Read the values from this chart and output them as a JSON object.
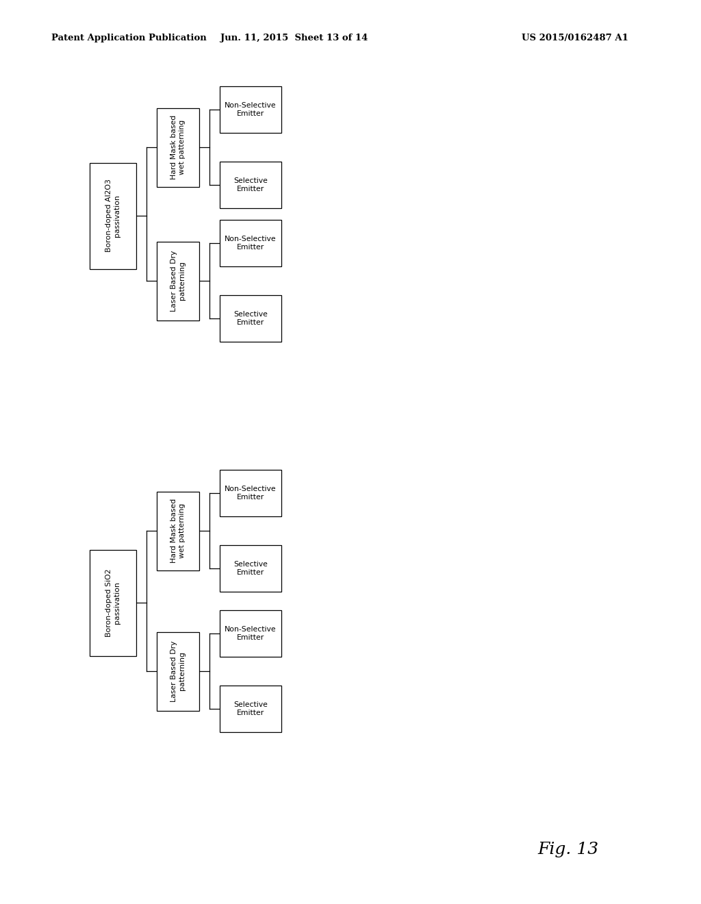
{
  "header_left": "Patent Application Publication",
  "header_mid": "Jun. 11, 2015  Sheet 13 of 14",
  "header_right": "US 2015/0162487 A1",
  "fig_label": "Fig. 13",
  "bg_color": "#ffffff",
  "tree1": {
    "root_text": "Boron-doped Al2O3\npassivation",
    "root_underline": true,
    "level2": [
      "Hard Mask based\nwet patterning",
      "Laser Based Dry\npatterning"
    ],
    "level3": [
      [
        "Non-Selective\nEmitter",
        "Selective\nEmitter"
      ],
      [
        "Non-Selective\nEmitter",
        "Selective\nEmitter"
      ]
    ]
  },
  "tree2": {
    "root_text": "Boron-doped SiO2\npassivation",
    "root_underline": true,
    "level2": [
      "Hard Mask based\nwet patterning",
      "Laser Based Dry\npatterning"
    ],
    "level3": [
      [
        "Non-Selective\nEmitter",
        "Selective\nEmitter"
      ],
      [
        "Non-Selective\nEmitter",
        "Selective\nEmitter"
      ]
    ]
  },
  "font_size": 7.8,
  "header_font_size": 9.5,
  "fig_font_size": 18
}
